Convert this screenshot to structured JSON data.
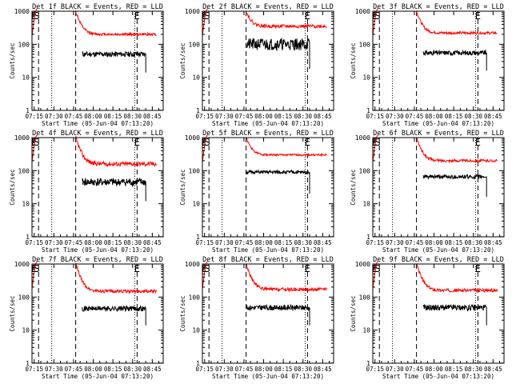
{
  "chart_data": [
    {
      "type": "line",
      "title": "Det 1f BLACK = Events, RED = LLD",
      "xlabel": "Start Time (05-Jun-04 07:13:20)",
      "ylabel": "Counts/sec",
      "x_ticks": [
        "07:15",
        "07:30",
        "07:45",
        "08:00",
        "08:15",
        "08:30",
        "08:45"
      ],
      "x_tick_minutes": [
        1.67,
        16.67,
        31.67,
        46.67,
        61.67,
        76.67,
        91.67
      ],
      "xlim_minutes": [
        0,
        100
      ],
      "y_ticks": [
        "1",
        "10",
        "100",
        "1000"
      ],
      "ylim": [
        1,
        1000
      ],
      "scale_y": "log",
      "markers": [
        {
          "label": "E",
          "minute": 1.5,
          "style": "dashed"
        },
        {
          "label": "S",
          "minute": 3.7,
          "style": "solid"
        },
        {
          "label": "E",
          "minute": 80.1,
          "style": "dotted"
        }
      ],
      "dashed_lines_minutes": [
        5.0,
        33.3,
        80.1
      ],
      "dotted_lines_minutes": [
        15.0,
        78.3
      ],
      "series": [
        {
          "name": "Events",
          "color": "#000000",
          "x_range": [
            38.3,
            86.7
          ],
          "level": 50,
          "noise": 0.08,
          "seed": 11,
          "end_drop": 14
        },
        {
          "name": "LLD",
          "color": "#ff0000",
          "x_range": [
            33.3,
            95.0
          ],
          "peak": 1000,
          "level": 200,
          "decay": 3,
          "noise": 0.04,
          "seed": 12
        }
      ]
    },
    {
      "type": "line",
      "title": "Det 2f BLACK = Events, RED = LLD",
      "xlabel": "Start Time (05-Jun-04 07:13:20)",
      "ylabel": "Counts/sec",
      "x_ticks": [
        "07:15",
        "07:30",
        "07:45",
        "08:00",
        "08:15",
        "08:30",
        "08:45"
      ],
      "x_tick_minutes": [
        1.67,
        16.67,
        31.67,
        46.67,
        61.67,
        76.67,
        91.67
      ],
      "xlim_minutes": [
        0,
        100
      ],
      "y_ticks": [
        "1",
        "10",
        "100",
        "1000"
      ],
      "ylim": [
        1,
        1000
      ],
      "scale_y": "log",
      "markers": [
        {
          "label": "E",
          "minute": 1.5,
          "style": "dashed"
        },
        {
          "label": "S",
          "minute": 3.7,
          "style": "solid"
        },
        {
          "label": "E",
          "minute": 80.1,
          "style": "dotted"
        }
      ],
      "dashed_lines_minutes": [
        5.0,
        33.3,
        80.1
      ],
      "dotted_lines_minutes": [
        15.0,
        78.3
      ],
      "series": [
        {
          "name": "Events",
          "color": "#000000",
          "x_range": [
            33.3,
            81.7
          ],
          "level": 100,
          "noise": 0.18,
          "seed": 21,
          "end_drop": 18
        },
        {
          "name": "LLD",
          "color": "#ff0000",
          "x_range": [
            33.3,
            95.0
          ],
          "peak": 1000,
          "level": 350,
          "decay": 3,
          "noise": 0.05,
          "seed": 22
        }
      ]
    },
    {
      "type": "line",
      "title": "Det 3f BLACK = Events, RED = LLD",
      "xlabel": "Start Time (05-Jun-04 07:13:20)",
      "ylabel": "Counts/sec",
      "x_ticks": [
        "07:15",
        "07:30",
        "07:45",
        "08:00",
        "08:15",
        "08:30",
        "08:45"
      ],
      "x_tick_minutes": [
        1.67,
        16.67,
        31.67,
        46.67,
        61.67,
        76.67,
        91.67
      ],
      "xlim_minutes": [
        0,
        100
      ],
      "y_ticks": [
        "1",
        "10",
        "100",
        "1000"
      ],
      "ylim": [
        1,
        1000
      ],
      "scale_y": "log",
      "markers": [
        {
          "label": "E",
          "minute": 1.5,
          "style": "dashed"
        },
        {
          "label": "S",
          "minute": 3.7,
          "style": "solid"
        },
        {
          "label": "E",
          "minute": 80.1,
          "style": "dotted"
        }
      ],
      "dashed_lines_minutes": [
        5.0,
        33.3,
        80.1
      ],
      "dotted_lines_minutes": [
        15.0,
        78.3
      ],
      "series": [
        {
          "name": "Events",
          "color": "#000000",
          "x_range": [
            38.3,
            86.7
          ],
          "level": 55,
          "noise": 0.07,
          "seed": 31,
          "end_drop": 16
        },
        {
          "name": "LLD",
          "color": "#ff0000",
          "x_range": [
            33.3,
            95.0
          ],
          "peak": 1000,
          "level": 220,
          "decay": 3,
          "noise": 0.04,
          "seed": 32
        }
      ]
    },
    {
      "type": "line",
      "title": "Det 4f BLACK = Events, RED = LLD",
      "xlabel": "Start Time (05-Jun-04 07:13:20)",
      "ylabel": "Counts/sec",
      "x_ticks": [
        "07:15",
        "07:30",
        "07:45",
        "08:00",
        "08:15",
        "08:30",
        "08:45"
      ],
      "x_tick_minutes": [
        1.67,
        16.67,
        31.67,
        46.67,
        61.67,
        76.67,
        91.67
      ],
      "xlim_minutes": [
        0,
        100
      ],
      "y_ticks": [
        "1",
        "10",
        "100",
        "1000"
      ],
      "ylim": [
        1,
        1000
      ],
      "scale_y": "log",
      "markers": [
        {
          "label": "E",
          "minute": 1.5,
          "style": "dashed"
        },
        {
          "label": "S",
          "minute": 3.7,
          "style": "solid"
        },
        {
          "label": "E",
          "minute": 80.1,
          "style": "dotted"
        }
      ],
      "dashed_lines_minutes": [
        5.0,
        33.3,
        80.1
      ],
      "dotted_lines_minutes": [
        15.0,
        78.3
      ],
      "series": [
        {
          "name": "Events",
          "color": "#000000",
          "x_range": [
            38.3,
            86.7
          ],
          "level": 45,
          "noise": 0.12,
          "seed": 41,
          "end_drop": 12
        },
        {
          "name": "LLD",
          "color": "#ff0000",
          "x_range": [
            33.3,
            95.0
          ],
          "peak": 1000,
          "level": 160,
          "decay": 3,
          "noise": 0.07,
          "seed": 42
        }
      ]
    },
    {
      "type": "line",
      "title": "Det 5f BLACK = Events, RED = LLD",
      "xlabel": "Start Time (05-Jun-04 07:13:20)",
      "ylabel": "Counts/sec",
      "x_ticks": [
        "07:15",
        "07:30",
        "07:45",
        "08:00",
        "08:15",
        "08:30",
        "08:45"
      ],
      "x_tick_minutes": [
        1.67,
        16.67,
        31.67,
        46.67,
        61.67,
        76.67,
        91.67
      ],
      "xlim_minutes": [
        0,
        100
      ],
      "y_ticks": [
        "1",
        "10",
        "100",
        "1000"
      ],
      "ylim": [
        1,
        1000
      ],
      "scale_y": "log",
      "markers": [
        {
          "label": "E",
          "minute": 1.5,
          "style": "dashed"
        },
        {
          "label": "S",
          "minute": 3.7,
          "style": "solid"
        },
        {
          "label": "E",
          "minute": 80.1,
          "style": "dotted"
        }
      ],
      "dashed_lines_minutes": [
        5.0,
        33.3,
        80.1
      ],
      "dotted_lines_minutes": [
        15.0,
        78.3
      ],
      "series": [
        {
          "name": "Events",
          "color": "#000000",
          "x_range": [
            33.3,
            81.7
          ],
          "level": 90,
          "noise": 0.05,
          "seed": 51,
          "end_drop": 20
        },
        {
          "name": "LLD",
          "color": "#ff0000",
          "x_range": [
            33.3,
            95.0
          ],
          "peak": 1000,
          "level": 300,
          "decay": 3,
          "noise": 0.03,
          "seed": 52
        }
      ]
    },
    {
      "type": "line",
      "title": "Det 6f BLACK = Events, RED = LLD",
      "xlabel": "Start Time (05-Jun-04 07:13:20)",
      "ylabel": "Counts/sec",
      "x_ticks": [
        "07:15",
        "07:30",
        "07:45",
        "08:00",
        "08:15",
        "08:30",
        "08:45"
      ],
      "x_tick_minutes": [
        1.67,
        16.67,
        31.67,
        46.67,
        61.67,
        76.67,
        91.67
      ],
      "xlim_minutes": [
        0,
        100
      ],
      "y_ticks": [
        "1",
        "10",
        "100",
        "1000"
      ],
      "ylim": [
        1,
        1000
      ],
      "scale_y": "log",
      "markers": [
        {
          "label": "E",
          "minute": 1.5,
          "style": "dashed"
        },
        {
          "label": "S",
          "minute": 3.7,
          "style": "solid"
        },
        {
          "label": "E",
          "minute": 80.1,
          "style": "dotted"
        }
      ],
      "dashed_lines_minutes": [
        5.0,
        33.3,
        80.1
      ],
      "dotted_lines_minutes": [
        15.0,
        78.3
      ],
      "series": [
        {
          "name": "Events",
          "color": "#000000",
          "x_range": [
            38.3,
            86.7
          ],
          "level": 65,
          "noise": 0.06,
          "seed": 61,
          "end_drop": 16
        },
        {
          "name": "LLD",
          "color": "#ff0000",
          "x_range": [
            33.3,
            95.0
          ],
          "peak": 1000,
          "level": 200,
          "decay": 3,
          "noise": 0.04,
          "seed": 62
        }
      ]
    },
    {
      "type": "line",
      "title": "Det 7f BLACK = Events, RED = LLD",
      "xlabel": "Start Time (05-Jun-04 07:13:20)",
      "ylabel": "Counts/sec",
      "x_ticks": [
        "07:15",
        "07:30",
        "07:45",
        "08:00",
        "08:15",
        "08:30",
        "08:45"
      ],
      "x_tick_minutes": [
        1.67,
        16.67,
        31.67,
        46.67,
        61.67,
        76.67,
        91.67
      ],
      "xlim_minutes": [
        0,
        100
      ],
      "y_ticks": [
        "1",
        "10",
        "100",
        "1000"
      ],
      "ylim": [
        1,
        1000
      ],
      "scale_y": "log",
      "markers": [
        {
          "label": "E",
          "minute": 1.5,
          "style": "dashed"
        },
        {
          "label": "S",
          "minute": 3.7,
          "style": "solid"
        },
        {
          "label": "E",
          "minute": 80.1,
          "style": "dotted"
        }
      ],
      "dashed_lines_minutes": [
        5.0,
        33.3,
        80.1
      ],
      "dotted_lines_minutes": [
        15.0,
        78.3
      ],
      "series": [
        {
          "name": "Events",
          "color": "#000000",
          "x_range": [
            38.3,
            86.7
          ],
          "level": 45,
          "noise": 0.08,
          "seed": 71,
          "end_drop": 14
        },
        {
          "name": "LLD",
          "color": "#ff0000",
          "x_range": [
            33.3,
            95.0
          ],
          "peak": 1000,
          "level": 150,
          "decay": 3,
          "noise": 0.05,
          "seed": 72
        }
      ]
    },
    {
      "type": "line",
      "title": "Det 8f BLACK = Events, RED = LLD",
      "xlabel": "Start Time (05-Jun-04 07:13:20)",
      "ylabel": "Counts/sec",
      "x_ticks": [
        "07:15",
        "07:30",
        "07:45",
        "08:00",
        "08:15",
        "08:30",
        "08:45"
      ],
      "x_tick_minutes": [
        1.67,
        16.67,
        31.67,
        46.67,
        61.67,
        76.67,
        91.67
      ],
      "xlim_minutes": [
        0,
        100
      ],
      "y_ticks": [
        "1",
        "10",
        "100",
        "1000"
      ],
      "ylim": [
        1,
        1000
      ],
      "scale_y": "log",
      "markers": [
        {
          "label": "E",
          "minute": 1.5,
          "style": "dashed"
        },
        {
          "label": "S",
          "minute": 3.7,
          "style": "solid"
        },
        {
          "label": "E",
          "minute": 80.1,
          "style": "dotted"
        }
      ],
      "dashed_lines_minutes": [
        5.0,
        33.3,
        80.1
      ],
      "dotted_lines_minutes": [
        15.0,
        78.3
      ],
      "series": [
        {
          "name": "Events",
          "color": "#000000",
          "x_range": [
            33.3,
            81.7
          ],
          "level": 48,
          "noise": 0.08,
          "seed": 81,
          "end_drop": 14
        },
        {
          "name": "LLD",
          "color": "#ff0000",
          "x_range": [
            33.3,
            95.0
          ],
          "peak": 1000,
          "level": 170,
          "decay": 3,
          "noise": 0.05,
          "seed": 82
        }
      ]
    },
    {
      "type": "line",
      "title": "Det 9f BLACK = Events, RED = LLD",
      "xlabel": "Start Time (05-Jun-04 07:13:20)",
      "ylabel": "Counts/sec",
      "x_ticks": [
        "07:15",
        "07:30",
        "07:45",
        "08:00",
        "08:15",
        "08:30",
        "08:45"
      ],
      "x_tick_minutes": [
        1.67,
        16.67,
        31.67,
        46.67,
        61.67,
        76.67,
        91.67
      ],
      "xlim_minutes": [
        0,
        100
      ],
      "y_ticks": [
        "1",
        "10",
        "100",
        "1000"
      ],
      "ylim": [
        1,
        1000
      ],
      "scale_y": "log",
      "markers": [
        {
          "label": "E",
          "minute": 1.5,
          "style": "dashed"
        },
        {
          "label": "S",
          "minute": 3.7,
          "style": "solid"
        },
        {
          "label": "E",
          "minute": 80.1,
          "style": "dotted"
        }
      ],
      "dashed_lines_minutes": [
        5.0,
        33.3,
        80.1
      ],
      "dotted_lines_minutes": [
        15.0,
        78.3
      ],
      "series": [
        {
          "name": "Events",
          "color": "#000000",
          "x_range": [
            38.3,
            86.7
          ],
          "level": 48,
          "noise": 0.09,
          "seed": 91,
          "end_drop": 14
        },
        {
          "name": "LLD",
          "color": "#ff0000",
          "x_range": [
            33.3,
            95.0
          ],
          "peak": 1000,
          "level": 160,
          "decay": 3,
          "noise": 0.05,
          "seed": 92
        }
      ]
    }
  ]
}
